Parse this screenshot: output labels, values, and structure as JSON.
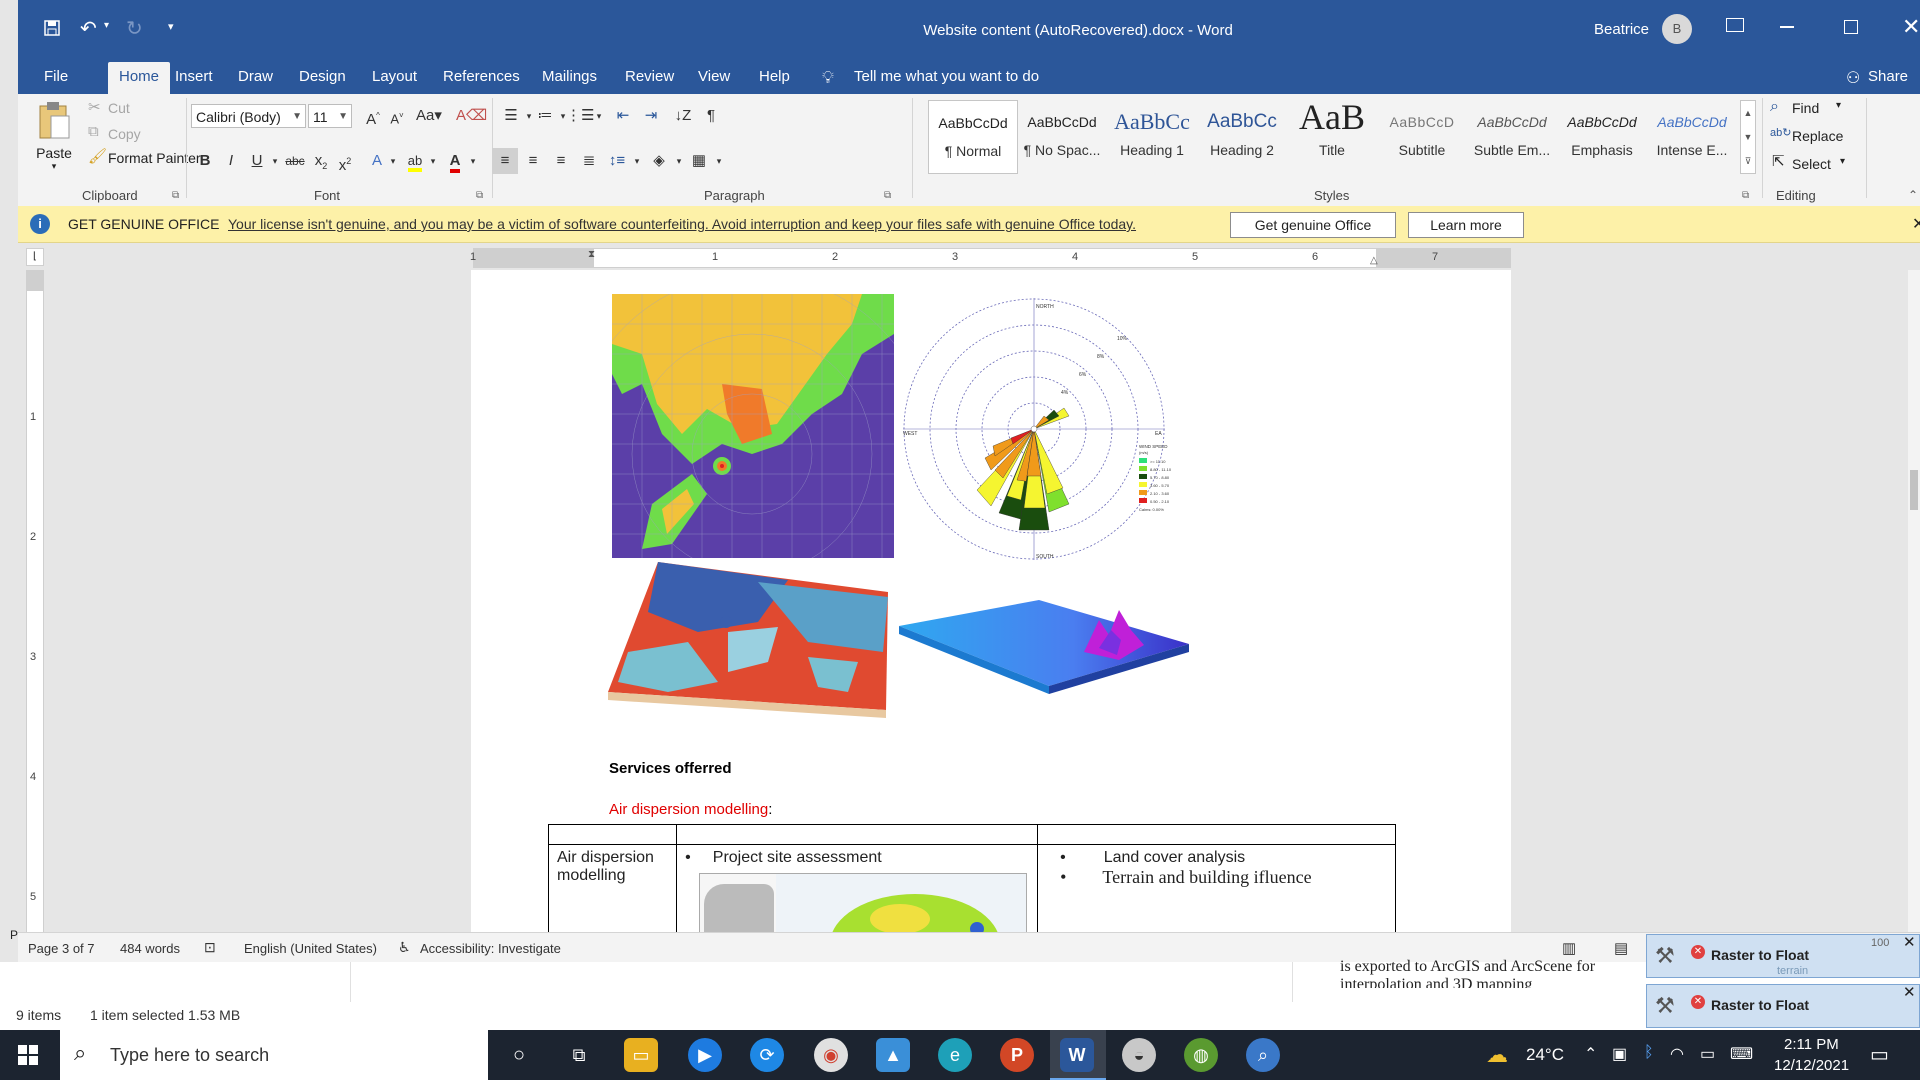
{
  "window": {
    "title": "Website content (AutoRecovered).docx  -  Word",
    "user_name": "Beatrice",
    "user_initial": "B",
    "share_label": "Share"
  },
  "tabs": [
    "File",
    "Home",
    "Insert",
    "Draw",
    "Design",
    "Layout",
    "References",
    "Mailings",
    "Review",
    "View",
    "Help"
  ],
  "tell_me": "Tell me what you want to do",
  "clipboard": {
    "paste": "Paste",
    "cut": "Cut",
    "copy": "Copy",
    "format_painter": "Format Painter",
    "group_label": "Clipboard"
  },
  "font": {
    "name": "Calibri (Body)",
    "size": "11",
    "group_label": "Font"
  },
  "paragraph": {
    "group_label": "Paragraph"
  },
  "styles": {
    "group_label": "Styles",
    "items": [
      {
        "sample": "AaBbCcDd",
        "name": "¶ Normal"
      },
      {
        "sample": "AaBbCcDd",
        "name": "¶ No Spac..."
      },
      {
        "sample": "AaBbCc",
        "name": "Heading 1"
      },
      {
        "sample": "AaBbCc",
        "name": "Heading 2"
      },
      {
        "sample": "AaB",
        "name": "Title"
      },
      {
        "sample": "AaBbCcD",
        "name": "Subtitle"
      },
      {
        "sample": "AaBbCcDd",
        "name": "Subtle Em..."
      },
      {
        "sample": "AaBbCcDd",
        "name": "Emphasis"
      },
      {
        "sample": "AaBbCcDd",
        "name": "Intense E..."
      }
    ]
  },
  "editing": {
    "find": "Find",
    "replace": "Replace",
    "select": "Select",
    "group_label": "Editing"
  },
  "banner": {
    "heading": "GET GENUINE OFFICE",
    "message": "Your license isn't genuine, and you may be a victim of software counterfeiting. Avoid interruption and keep your files safe with genuine Office today.",
    "btn_genuine": "Get genuine Office",
    "btn_learn": "Learn more"
  },
  "ruler": {
    "h_marks": [
      "1",
      "1",
      "2",
      "3",
      "4",
      "5",
      "6",
      "7"
    ],
    "v_marks": [
      "1",
      "2",
      "3",
      "4",
      "5"
    ]
  },
  "windrose": {
    "north": "NORTH",
    "south": "SOUTH",
    "west": "WEST",
    "east": "EA",
    "rings": [
      "10%",
      "8%",
      "6%",
      "4%",
      "2%"
    ],
    "legend_title": "WIND SPEED",
    "legend_unit": "(m/s)",
    "legend_items": [
      {
        "label": ">= 11.10",
        "color": "#2de07a"
      },
      {
        "label": "8.80 - 11.10",
        "color": "#7fe02d"
      },
      {
        "label": "5.70 - 8.80",
        "color": "#1a4d0e"
      },
      {
        "label": "3.60 - 5.70",
        "color": "#f5f530"
      },
      {
        "label": "2.10 - 3.60",
        "color": "#f09a1a"
      },
      {
        "label": "0.50 - 2.10",
        "color": "#e02020"
      }
    ],
    "calms": "Calms: 0.00%"
  },
  "document": {
    "services_heading": "Services offerred",
    "air_heading": "Air dispersion modelling",
    "air_heading_suffix": ":",
    "table_cell1_line1": "Air dispersion",
    "table_cell1_line2": "modelling",
    "table_cell2_bullet": "Project site assessment",
    "table_cell3_bullet1": "Land cover analysis",
    "table_cell3_bullet2": "Terrain and building ifluence"
  },
  "statusbar": {
    "page": "Page 3 of 7",
    "words": "484 words",
    "language": "English (United States)",
    "accessibility": "Accessibility: Investigate",
    "zoom": "100"
  },
  "explorer": {
    "items": "9 items",
    "selected": "1 item selected  1.53 MB",
    "bg_text1": "is exported to ArcGIS and ArcScene for",
    "bg_text2": "interpolation and 3D mapping",
    "bg_left": "P"
  },
  "raster_popups": [
    {
      "label": "Raster to Float",
      "hint": "terrain"
    },
    {
      "label": "Raster to Float"
    }
  ],
  "taskbar": {
    "search_placeholder": "Type here to search",
    "temperature": "24°C",
    "time": "2:11 PM",
    "date": "12/12/2021"
  },
  "colors": {
    "word_blue": "#2b579a",
    "banner_yellow": "#fdf1a8",
    "heading_red": "#e00000"
  }
}
